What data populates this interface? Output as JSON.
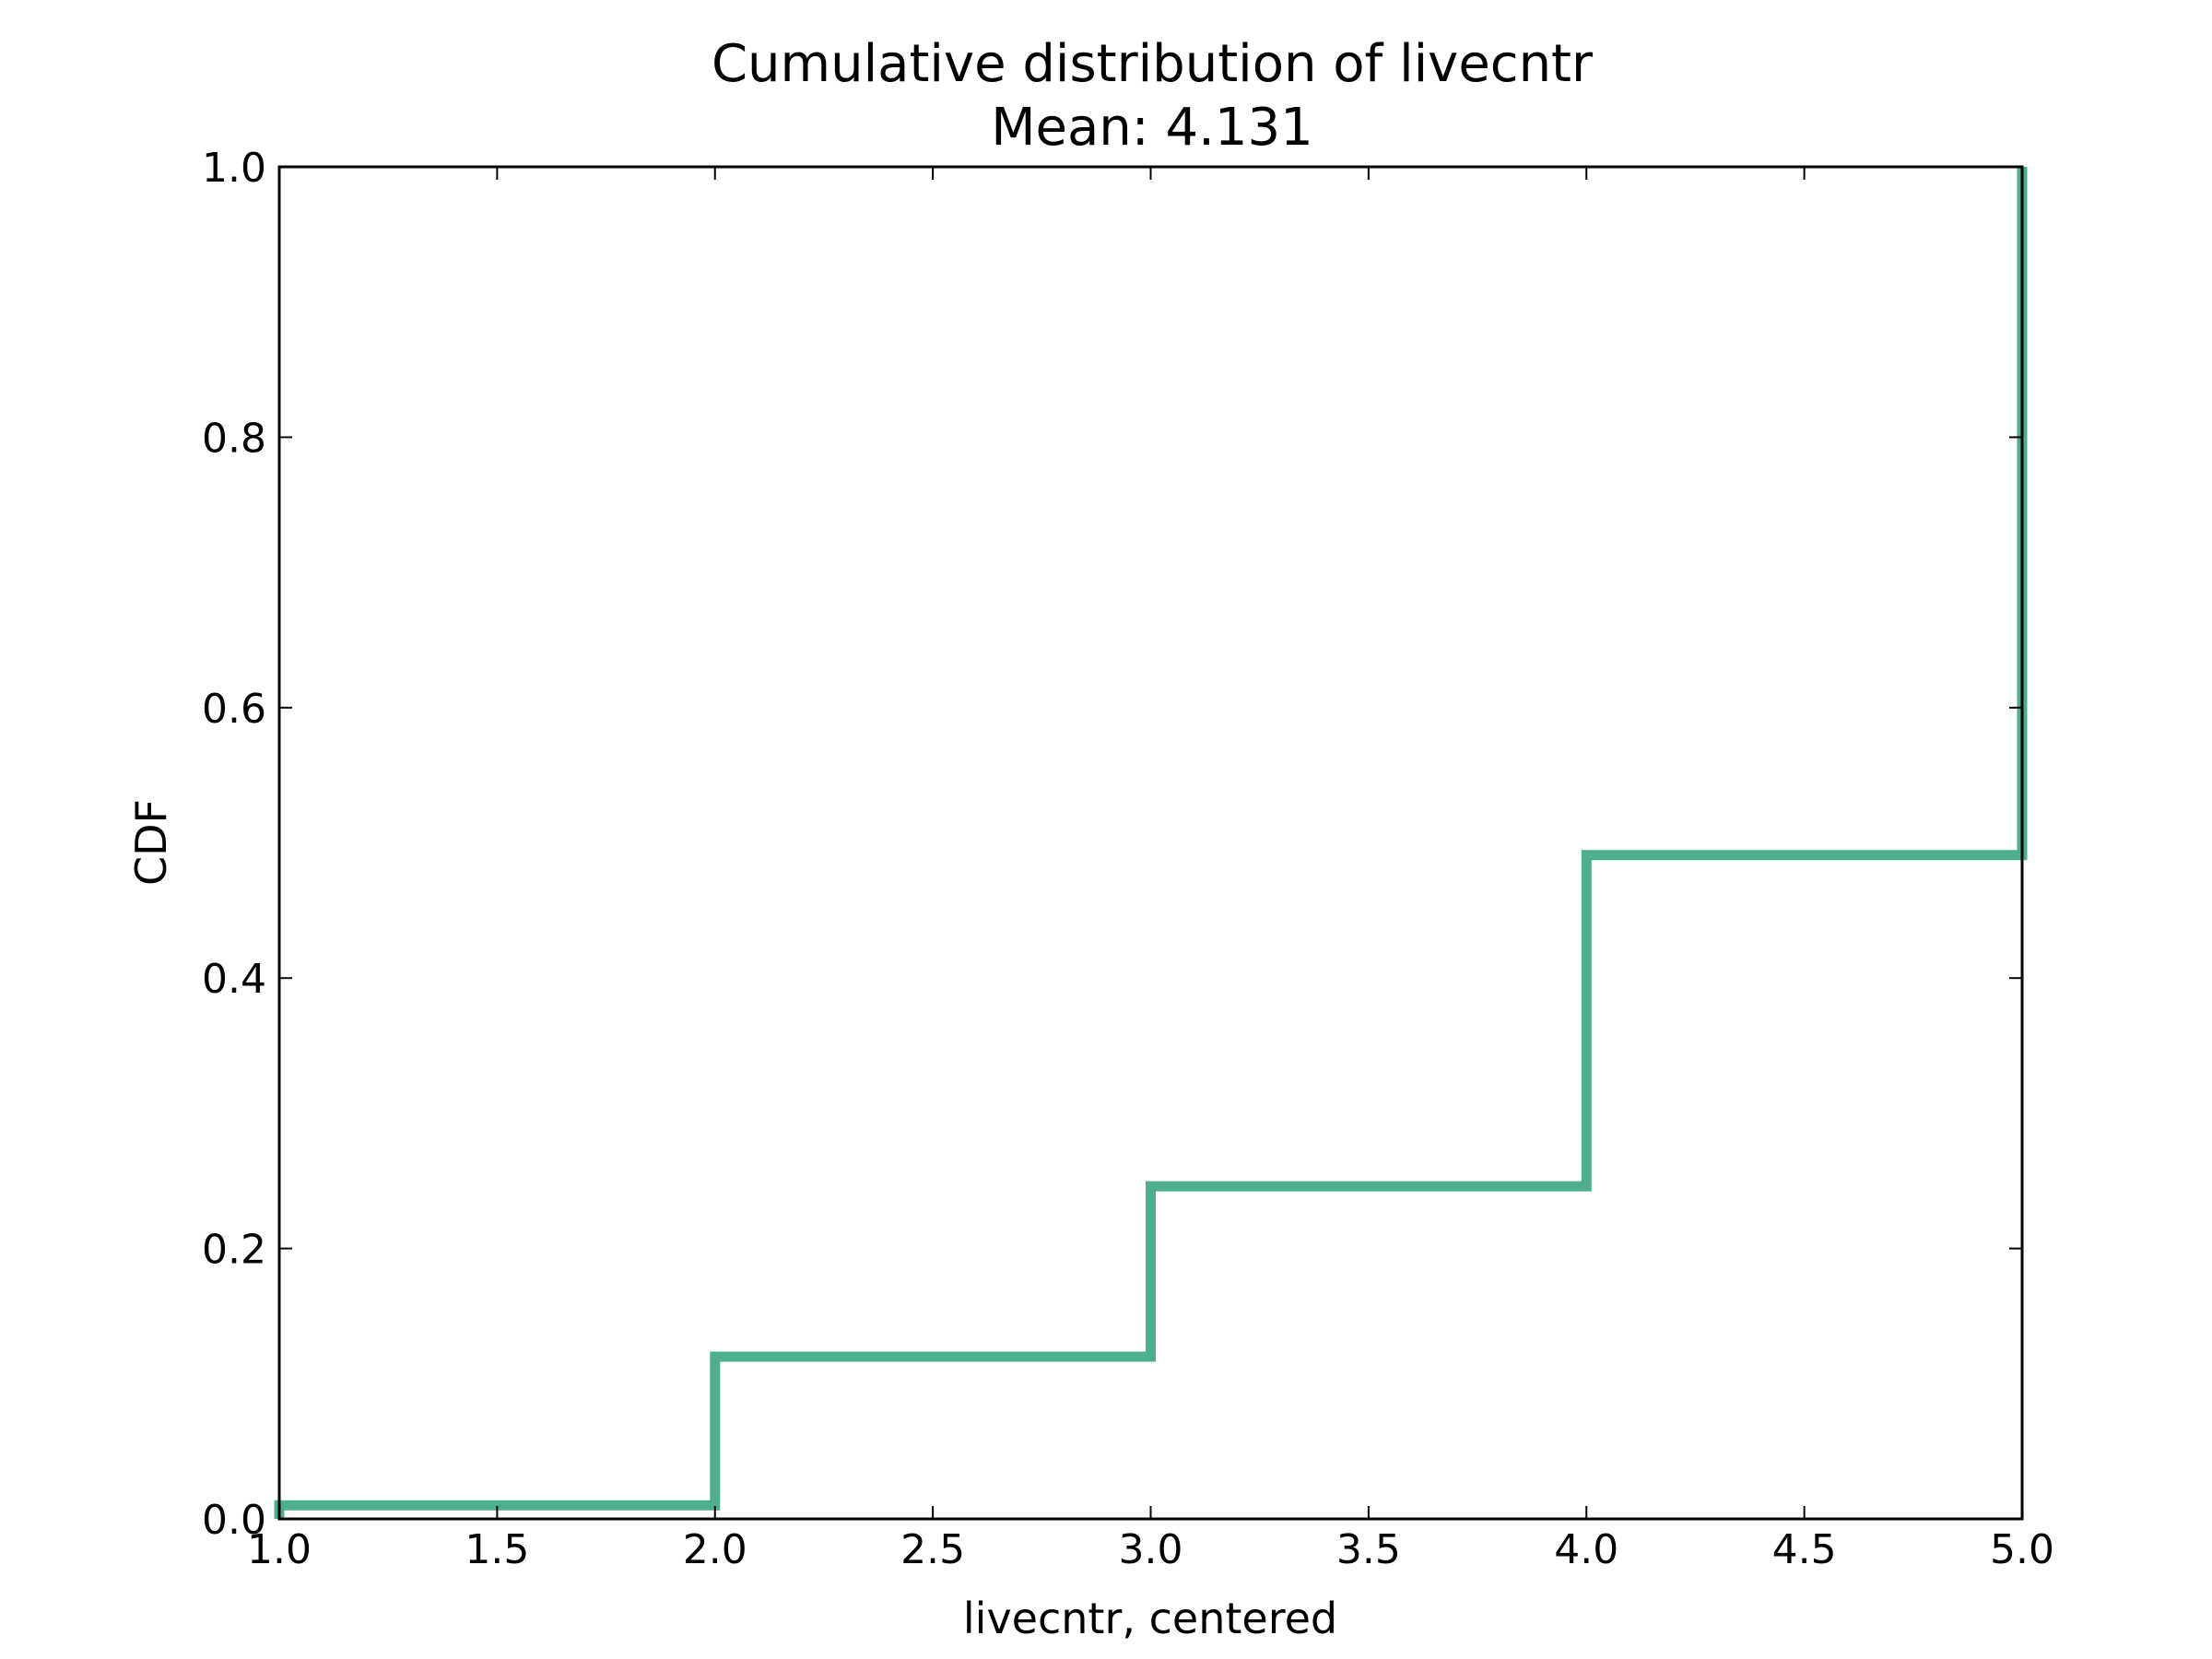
{
  "chart_data": {
    "type": "line",
    "subtype": "step-cdf",
    "title": "Cumulative distribution of livecntr",
    "subtitle": "Mean: 4.131",
    "xlabel": "livecntr, centered",
    "ylabel": "CDF",
    "xlim": [
      1.0,
      5.0
    ],
    "ylim": [
      0.0,
      1.0
    ],
    "x_ticks": [
      "1.0",
      "1.5",
      "2.0",
      "2.5",
      "3.0",
      "3.5",
      "4.0",
      "4.5",
      "5.0"
    ],
    "y_ticks": [
      "0.0",
      "0.2",
      "0.4",
      "0.6",
      "0.8",
      "1.0"
    ],
    "grid": false,
    "legend": "none",
    "series": [
      {
        "color": "#4daf8f",
        "points": [
          {
            "x": 1.0,
            "y": 0.0
          },
          {
            "x": 1.0,
            "y": 0.01
          },
          {
            "x": 2.0,
            "y": 0.01
          },
          {
            "x": 2.0,
            "y": 0.12
          },
          {
            "x": 3.0,
            "y": 0.12
          },
          {
            "x": 3.0,
            "y": 0.246
          },
          {
            "x": 4.0,
            "y": 0.246
          },
          {
            "x": 4.0,
            "y": 0.491
          },
          {
            "x": 5.0,
            "y": 0.491
          },
          {
            "x": 5.0,
            "y": 1.0
          }
        ]
      }
    ]
  }
}
